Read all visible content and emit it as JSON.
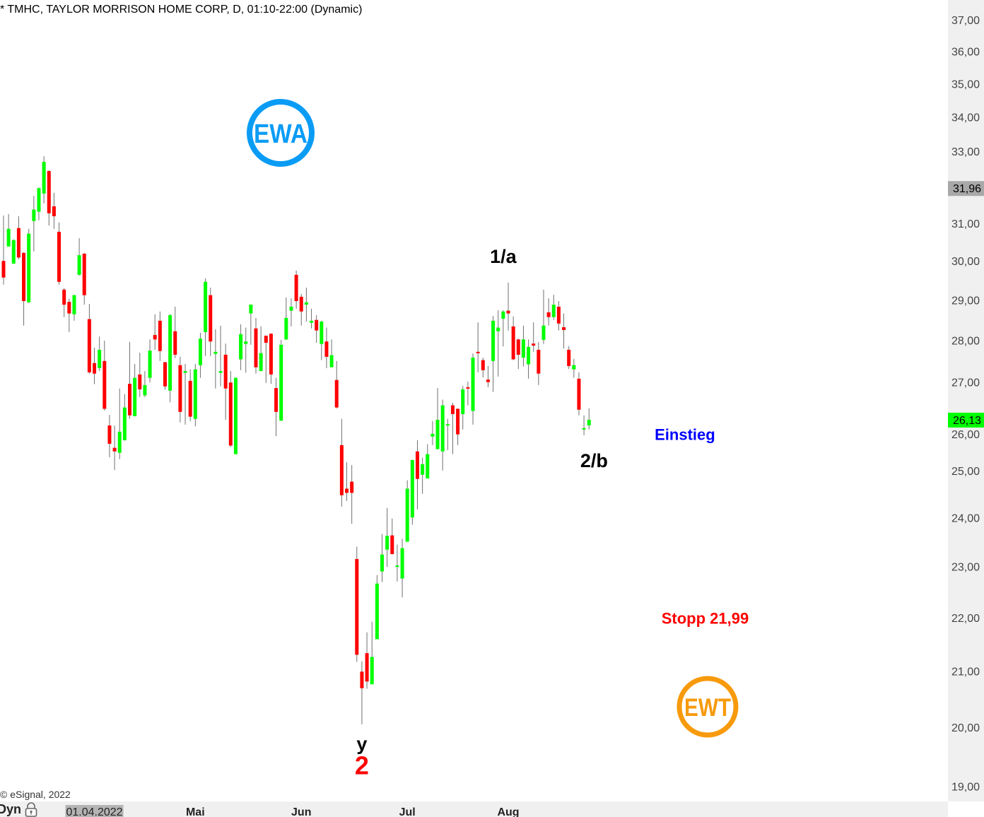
{
  "header": {
    "title": "* TMHC, TAYLOR MORRISON HOME CORP, D, 01:10-22:00 (Dynamic)"
  },
  "footer": {
    "copyright": "© eSignal, 2022",
    "mode_label": "Dyn"
  },
  "icons": {
    "lock": "lock-icon"
  },
  "logos": {
    "top": "EWA",
    "bottom": "EWT"
  },
  "colors": {
    "up": "#00ff00",
    "down": "#ff0000",
    "wick": "#707070",
    "ewa": "#0a9cf5",
    "ewt": "#f79a0c",
    "einstieg": "#0000ff",
    "stopp": "#ff0000",
    "wave2": "#ff0000",
    "axis_bg": "#f0f0f0",
    "prev_marker": "#a8a8a8",
    "last_marker": "#00ff00"
  },
  "annotations": [
    {
      "text": "1/a",
      "price": 30.1,
      "candle": 99,
      "color": "#000000"
    },
    {
      "text": "2/b",
      "price": 25.2,
      "candle": 117,
      "color": "#000000"
    },
    {
      "text": "y",
      "price": 19.7,
      "candle": 71,
      "color": "#000000"
    },
    {
      "text": "2",
      "price": 19.2,
      "candle": 71,
      "color": "#ff0000"
    },
    {
      "text": "Einstieg",
      "price": 25.8,
      "candle": 135,
      "color": "#0000ff"
    },
    {
      "text": "Stopp 21,99",
      "price": 21.99,
      "candle": 139,
      "color": "#ff0000"
    }
  ],
  "chart_data": {
    "type": "candlestick",
    "title": "* TMHC, TAYLOR MORRISON HOME CORP, D, 01:10-22:00 (Dynamic)",
    "y_scale": "log",
    "ylim": [
      18.8,
      37.6
    ],
    "grid": false,
    "y_ticks": [
      "37,00",
      "36,00",
      "35,00",
      "34,00",
      "33,00",
      "31,00",
      "30,00",
      "29,00",
      "28,00",
      "27,00",
      "26,00",
      "25,00",
      "24,00",
      "23,00",
      "22,00",
      "21,00",
      "20,00",
      "19,00"
    ],
    "y_tick_values": [
      37,
      36,
      35,
      34,
      33,
      31,
      30,
      29,
      28,
      27,
      26,
      25,
      24,
      23,
      22,
      21,
      20,
      19
    ],
    "x_labels": [
      {
        "text": "01.04.2022",
        "candle": 18,
        "highlight": true
      },
      {
        "text": "Mai",
        "candle": 38
      },
      {
        "text": "Jun",
        "candle": 59
      },
      {
        "text": "Jul",
        "candle": 80
      },
      {
        "text": "Aug",
        "candle": 100
      }
    ],
    "price_markers": [
      {
        "text": "31,96",
        "value": 31.96,
        "kind": "previous"
      },
      {
        "text": "26,13",
        "value": 26.13,
        "kind": "last"
      }
    ],
    "ohlc_fields": [
      "open",
      "high",
      "low",
      "close"
    ],
    "candles": [
      [
        30.0,
        31.21,
        29.39,
        29.57
      ],
      [
        30.38,
        31.25,
        30.38,
        30.85
      ],
      [
        29.93,
        30.57,
        29.93,
        30.55
      ],
      [
        30.87,
        31.19,
        30.04,
        30.09
      ],
      [
        30.21,
        30.23,
        28.36,
        28.97
      ],
      [
        28.94,
        30.85,
        28.92,
        30.72
      ],
      [
        31.06,
        31.75,
        30.25,
        31.37
      ],
      [
        31.31,
        31.98,
        31.08,
        31.96
      ],
      [
        31.81,
        32.86,
        31.54,
        32.7
      ],
      [
        32.44,
        32.46,
        30.94,
        31.27
      ],
      [
        31.46,
        31.83,
        30.85,
        31.19
      ],
      [
        30.77,
        31.02,
        29.39,
        29.46
      ],
      [
        29.26,
        29.3,
        28.57,
        28.88
      ],
      [
        28.95,
        29.03,
        28.2,
        28.66
      ],
      [
        28.64,
        29.13,
        28.48,
        29.12
      ],
      [
        29.64,
        30.6,
        29.62,
        30.15
      ],
      [
        30.19,
        30.21,
        28.88,
        29.12
      ],
      [
        28.52,
        28.9,
        27.2,
        27.23
      ],
      [
        27.45,
        27.82,
        26.95,
        27.2
      ],
      [
        27.33,
        28.09,
        27.26,
        27.77
      ],
      [
        27.5,
        27.99,
        26.34,
        26.38
      ],
      [
        26.0,
        26.24,
        25.29,
        25.59
      ],
      [
        25.5,
        26.0,
        25.01,
        25.42
      ],
      [
        25.39,
        26.85,
        25.25,
        25.86
      ],
      [
        25.67,
        26.72,
        25.66,
        26.41
      ],
      [
        26.96,
        27.96,
        26.15,
        26.23
      ],
      [
        26.21,
        27.43,
        26.21,
        27.1
      ],
      [
        27.18,
        27.7,
        26.65,
        26.83
      ],
      [
        26.69,
        27.26,
        26.65,
        26.93
      ],
      [
        27.1,
        28.02,
        26.99,
        27.75
      ],
      [
        28.13,
        28.64,
        27.77,
        28.02
      ],
      [
        28.48,
        28.71,
        27.5,
        27.74
      ],
      [
        27.47,
        27.48,
        26.82,
        26.9
      ],
      [
        26.8,
        28.64,
        26.53,
        28.62
      ],
      [
        28.22,
        28.83,
        27.57,
        27.65
      ],
      [
        27.4,
        27.6,
        26.07,
        26.31
      ],
      [
        27.22,
        27.43,
        26.02,
        27.26
      ],
      [
        27.03,
        27.3,
        26.1,
        26.2
      ],
      [
        26.15,
        27.43,
        25.98,
        27.3
      ],
      [
        27.4,
        28.18,
        27.1,
        28.04
      ],
      [
        28.2,
        29.55,
        27.62,
        29.46
      ],
      [
        29.12,
        29.31,
        27.62,
        27.97
      ],
      [
        27.67,
        28.27,
        26.85,
        27.72
      ],
      [
        27.22,
        28.36,
        26.9,
        27.26
      ],
      [
        27.65,
        27.92,
        26.13,
        26.85
      ],
      [
        26.99,
        27.26,
        25.52,
        25.55
      ],
      [
        25.36,
        27.11,
        25.36,
        27.1
      ],
      [
        27.54,
        28.39,
        27.28,
        28.15
      ],
      [
        27.91,
        28.31,
        27.22,
        27.97
      ],
      [
        28.66,
        28.89,
        27.89,
        28.88
      ],
      [
        28.29,
        28.55,
        27.2,
        27.35
      ],
      [
        27.26,
        28.34,
        27.26,
        27.69
      ],
      [
        28.11,
        28.12,
        26.98,
        27.94
      ],
      [
        28.16,
        28.17,
        26.96,
        27.18
      ],
      [
        26.86,
        27.1,
        25.76,
        26.31
      ],
      [
        26.11,
        28.01,
        26.1,
        27.89
      ],
      [
        28.02,
        29.06,
        28.01,
        28.55
      ],
      [
        28.73,
        29.04,
        28.34,
        28.83
      ],
      [
        29.64,
        29.75,
        28.78,
        28.97
      ],
      [
        29.08,
        29.15,
        28.36,
        28.71
      ],
      [
        28.88,
        29.31,
        28.46,
        28.94
      ],
      [
        28.43,
        28.78,
        28.29,
        28.48
      ],
      [
        28.5,
        28.62,
        27.94,
        28.24
      ],
      [
        27.91,
        28.48,
        27.52,
        28.46
      ],
      [
        27.97,
        28.31,
        27.33,
        27.6
      ],
      [
        27.35,
        28.02,
        27.35,
        27.64
      ],
      [
        27.05,
        27.5,
        26.39,
        26.41
      ],
      [
        25.56,
        26.15,
        24.23,
        24.47
      ],
      [
        24.61,
        25.18,
        24.35,
        24.52
      ],
      [
        24.76,
        25.12,
        23.87,
        24.52
      ],
      [
        23.15,
        23.4,
        21.17,
        21.3
      ],
      [
        20.99,
        21.18,
        20.05,
        20.69
      ],
      [
        21.33,
        21.72,
        20.68,
        20.81
      ],
      [
        20.76,
        21.92,
        20.76,
        21.26
      ],
      [
        21.59,
        22.83,
        21.59,
        22.66
      ],
      [
        22.9,
        23.66,
        22.69,
        23.24
      ],
      [
        23.34,
        24.2,
        22.99,
        23.62
      ],
      [
        23.63,
        23.98,
        23.24,
        23.25
      ],
      [
        22.99,
        23.44,
        22.7,
        23.02
      ],
      [
        22.76,
        23.56,
        22.39,
        23.37
      ],
      [
        23.5,
        24.79,
        23.5,
        24.61
      ],
      [
        24.0,
        25.24,
        23.85,
        25.23
      ],
      [
        25.42,
        25.67,
        24.17,
        24.82
      ],
      [
        24.91,
        25.28,
        24.5,
        25.14
      ],
      [
        24.83,
        25.58,
        24.83,
        25.36
      ],
      [
        25.75,
        26.1,
        25.56,
        25.81
      ],
      [
        25.47,
        26.86,
        25.47,
        26.13
      ],
      [
        25.42,
        26.59,
        25.0,
        26.46
      ],
      [
        26.0,
        26.15,
        25.45,
        26.03
      ],
      [
        26.46,
        26.52,
        25.36,
        26.26
      ],
      [
        26.38,
        26.39,
        25.56,
        25.8
      ],
      [
        26.26,
        26.91,
        25.91,
        26.83
      ],
      [
        26.88,
        27.01,
        26.46,
        26.85
      ],
      [
        26.33,
        27.68,
        26.02,
        27.58
      ],
      [
        27.72,
        28.44,
        27.23,
        27.69
      ],
      [
        27.52,
        27.58,
        27.11,
        27.28
      ],
      [
        27.06,
        27.38,
        26.88,
        27.0
      ],
      [
        27.5,
        28.6,
        26.77,
        28.48
      ],
      [
        28.22,
        28.74,
        27.13,
        28.31
      ],
      [
        28.53,
        28.74,
        27.85,
        28.71
      ],
      [
        28.73,
        29.44,
        28.24,
        28.66
      ],
      [
        28.34,
        28.59,
        27.52,
        27.54
      ],
      [
        28.02,
        28.04,
        27.31,
        27.65
      ],
      [
        27.58,
        28.36,
        27.37,
        28.02
      ],
      [
        27.42,
        28.02,
        27.08,
        27.84
      ],
      [
        27.92,
        28.44,
        27.72,
        27.87
      ],
      [
        27.77,
        27.96,
        26.93,
        27.2
      ],
      [
        28.01,
        29.26,
        27.91,
        28.36
      ],
      [
        28.69,
        29.04,
        28.36,
        28.57
      ],
      [
        28.57,
        29.13,
        28.5,
        28.88
      ],
      [
        28.83,
        28.97,
        28.24,
        28.41
      ],
      [
        28.32,
        28.66,
        27.8,
        28.25
      ],
      [
        27.77,
        27.86,
        27.31,
        27.38
      ],
      [
        27.3,
        27.55,
        27.1,
        27.4
      ],
      [
        27.08,
        27.23,
        26.23,
        26.36
      ],
      [
        25.92,
        26.23,
        25.78,
        25.94
      ],
      [
        26.0,
        26.39,
        25.91,
        26.13
      ]
    ]
  }
}
